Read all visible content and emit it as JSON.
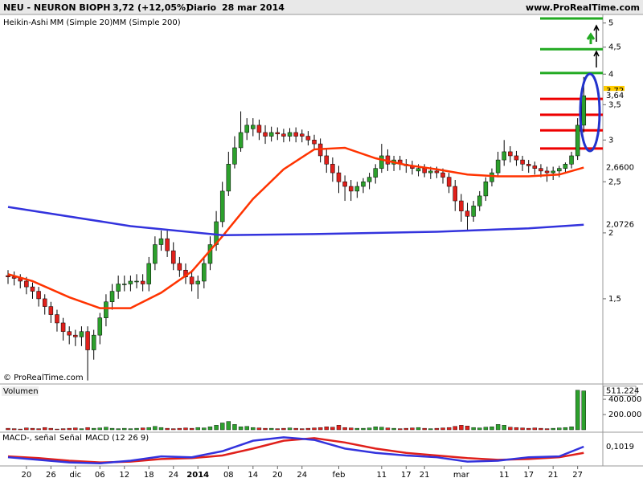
{
  "header": {
    "symbol": "NEU - NEURON BIOPH",
    "quote": "3,72 (+12,05%)",
    "period": "Diario",
    "date": "28 mar 2014",
    "site": "www.ProRealTime.com"
  },
  "copyright": "© ProRealTime.com",
  "chart_data": [
    {
      "type": "candlestick",
      "log_scale": true,
      "ylim": [
        1.034,
        5.19
      ],
      "yticks": [
        5,
        {
          "value": 4.5,
          "label": "4,5"
        },
        4,
        {
          "value": 3.5,
          "label": "3,5"
        },
        3,
        {
          "value": 2.5,
          "label": "2,5"
        },
        2,
        {
          "value": 1.5,
          "label": "1,5"
        }
      ],
      "categories": [
        null,
        null,
        null,
        "20",
        null,
        null,
        null,
        "26",
        null,
        null,
        null,
        "dic",
        null,
        null,
        null,
        "06",
        null,
        null,
        null,
        "12",
        null,
        null,
        null,
        "18",
        null,
        null,
        null,
        "24",
        null,
        null,
        null,
        "2014",
        null,
        null,
        null,
        null,
        "08",
        null,
        null,
        null,
        "14",
        null,
        null,
        null,
        "20",
        null,
        null,
        null,
        "24",
        null,
        null,
        null,
        null,
        null,
        "feb",
        null,
        null,
        null,
        null,
        null,
        null,
        "11",
        null,
        null,
        null,
        "17",
        null,
        null,
        "21",
        null,
        null,
        null,
        null,
        null,
        "mar",
        null,
        null,
        null,
        null,
        null,
        null,
        "11",
        null,
        null,
        null,
        "17",
        null,
        null,
        null,
        "21",
        null,
        null,
        null,
        "27",
        null
      ],
      "candles": {
        "name": "Heikin-Ashi",
        "up_color": "#2ca02c",
        "down_color": "#e0201b",
        "open": [
          1.66,
          1.65,
          1.64,
          1.62,
          1.58,
          1.55,
          1.5,
          1.45,
          1.4,
          1.35,
          1.3,
          1.28,
          1.27,
          1.3,
          1.2,
          1.28,
          1.38,
          1.48,
          1.55,
          1.6,
          1.6,
          1.62,
          1.62,
          1.6,
          1.75,
          1.9,
          1.95,
          1.85,
          1.75,
          1.7,
          1.65,
          1.6,
          1.62,
          1.75,
          1.9,
          2.1,
          2.4,
          2.7,
          2.9,
          3.1,
          3.15,
          3.2,
          3.1,
          3.05,
          3.1,
          3.08,
          3.05,
          3.1,
          3.08,
          3.05,
          3.0,
          2.95,
          2.8,
          2.7,
          2.6,
          2.5,
          2.45,
          2.4,
          2.45,
          2.5,
          2.55,
          2.65,
          2.8,
          2.7,
          2.75,
          2.7,
          2.68,
          2.62,
          2.65,
          2.6,
          2.62,
          2.6,
          2.55,
          2.45,
          2.3,
          2.2,
          2.15,
          2.25,
          2.35,
          2.5,
          2.6,
          2.75,
          2.85,
          2.8,
          2.75,
          2.7,
          2.68,
          2.65,
          2.62,
          2.6,
          2.62,
          2.65,
          2.7,
          2.8,
          3.2
        ],
        "high": [
          1.7,
          1.69,
          1.67,
          1.65,
          1.61,
          1.58,
          1.53,
          1.48,
          1.43,
          1.38,
          1.33,
          1.31,
          1.33,
          1.33,
          1.31,
          1.41,
          1.53,
          1.6,
          1.66,
          1.66,
          1.66,
          1.67,
          1.67,
          1.8,
          1.97,
          2.02,
          2.02,
          1.92,
          1.8,
          1.75,
          1.7,
          1.66,
          1.8,
          1.97,
          2.2,
          2.5,
          2.85,
          3.05,
          3.4,
          3.3,
          3.3,
          3.28,
          3.2,
          3.18,
          3.17,
          3.15,
          3.16,
          3.17,
          3.14,
          3.12,
          3.07,
          3.02,
          2.88,
          2.78,
          2.68,
          2.57,
          2.52,
          2.5,
          2.54,
          2.6,
          2.7,
          2.95,
          2.88,
          2.8,
          2.8,
          2.76,
          2.74,
          2.7,
          2.7,
          2.67,
          2.67,
          2.65,
          2.6,
          2.52,
          2.37,
          2.28,
          2.3,
          2.4,
          2.55,
          2.65,
          2.85,
          3.0,
          2.92,
          2.86,
          2.8,
          2.75,
          2.73,
          2.7,
          2.67,
          2.67,
          2.68,
          2.72,
          2.85,
          3.3,
          3.95
        ],
        "low": [
          1.6,
          1.59,
          1.57,
          1.53,
          1.5,
          1.45,
          1.4,
          1.35,
          1.3,
          1.25,
          1.23,
          1.22,
          1.22,
          1.05,
          1.15,
          1.23,
          1.33,
          1.43,
          1.5,
          1.55,
          1.55,
          1.57,
          1.55,
          1.55,
          1.7,
          1.85,
          1.8,
          1.7,
          1.65,
          1.6,
          1.55,
          1.5,
          1.57,
          1.7,
          1.85,
          2.05,
          2.35,
          2.65,
          2.85,
          3.0,
          3.05,
          3.0,
          2.95,
          2.98,
          3.0,
          2.97,
          2.98,
          2.97,
          2.97,
          2.93,
          2.88,
          2.72,
          2.6,
          2.5,
          2.38,
          2.3,
          2.3,
          2.33,
          2.38,
          2.42,
          2.48,
          2.6,
          2.62,
          2.62,
          2.63,
          2.6,
          2.58,
          2.56,
          2.55,
          2.53,
          2.54,
          2.48,
          2.38,
          2.2,
          2.1,
          2.02,
          2.1,
          2.2,
          2.3,
          2.45,
          2.55,
          2.68,
          2.72,
          2.68,
          2.62,
          2.6,
          2.58,
          2.55,
          2.5,
          2.52,
          2.55,
          2.6,
          2.65,
          2.75,
          3.1
        ],
        "close": [
          1.65,
          1.64,
          1.62,
          1.58,
          1.55,
          1.5,
          1.45,
          1.4,
          1.35,
          1.3,
          1.28,
          1.27,
          1.3,
          1.2,
          1.28,
          1.38,
          1.48,
          1.55,
          1.6,
          1.6,
          1.62,
          1.62,
          1.6,
          1.75,
          1.9,
          1.95,
          1.85,
          1.75,
          1.7,
          1.65,
          1.6,
          1.62,
          1.75,
          1.9,
          2.1,
          2.4,
          2.7,
          2.9,
          3.1,
          3.2,
          3.2,
          3.1,
          3.05,
          3.1,
          3.08,
          3.05,
          3.1,
          3.05,
          3.05,
          3.0,
          2.95,
          2.8,
          2.7,
          2.6,
          2.5,
          2.45,
          2.4,
          2.45,
          2.5,
          2.55,
          2.65,
          2.8,
          2.7,
          2.75,
          2.7,
          2.68,
          2.65,
          2.65,
          2.6,
          2.62,
          2.6,
          2.55,
          2.45,
          2.3,
          2.2,
          2.15,
          2.25,
          2.35,
          2.5,
          2.6,
          2.75,
          2.85,
          2.8,
          2.75,
          2.7,
          2.68,
          2.65,
          2.62,
          2.6,
          2.62,
          2.65,
          2.7,
          2.8,
          3.2,
          3.64
        ]
      },
      "series": [
        {
          "name": "MM (Simple 20)",
          "color": "#ff3300",
          "x": [
            0,
            4,
            10,
            15,
            20,
            25,
            30,
            35,
            40,
            45,
            50,
            55,
            60,
            65,
            70,
            75,
            80,
            85,
            90,
            94
          ],
          "values": [
            1.67,
            1.62,
            1.51,
            1.44,
            1.44,
            1.54,
            1.69,
            1.97,
            2.32,
            2.64,
            2.88,
            2.9,
            2.77,
            2.69,
            2.64,
            2.58,
            2.56,
            2.56,
            2.58,
            2.66
          ]
        },
        {
          "name": "MM (Simple 200)",
          "color": "#3333dd",
          "x": [
            0,
            20,
            35,
            50,
            70,
            85,
            94
          ],
          "values": [
            2.24,
            2.06,
            1.98,
            1.99,
            2.01,
            2.04,
            2.0726
          ]
        }
      ],
      "price_labels": [
        {
          "value": 3.72,
          "label": "3,72",
          "color": "#ffcc00"
        },
        {
          "value": 3.64,
          "label": "3,64",
          "color": "#ffffff"
        },
        {
          "value": 2.66,
          "label": "2,6600",
          "color": "#e0201b"
        },
        {
          "value": 2.0726,
          "label": "2,0726",
          "color": "#3333dd"
        }
      ],
      "levels": [
        {
          "value": 5.1,
          "color": "#22aa22"
        },
        {
          "value": 4.46,
          "color": "#22aa22"
        },
        {
          "value": 4.02,
          "color": "#22aa22"
        },
        {
          "value": 3.59,
          "color": "#ee0000"
        },
        {
          "value": 3.35,
          "color": "#ee0000"
        },
        {
          "value": 3.13,
          "color": "#ee0000"
        },
        {
          "value": 2.89,
          "color": "#ee0000"
        }
      ]
    },
    {
      "type": "bar",
      "title": "Volumen",
      "ylim": [
        0,
        580000
      ],
      "yticks": [
        {
          "value": 400000,
          "label": "400.000"
        },
        {
          "value": 200000,
          "label": "200.000"
        }
      ],
      "values": [
        20000,
        15000,
        10000,
        25000,
        20000,
        15000,
        30000,
        20000,
        10000,
        15000,
        20000,
        25000,
        15000,
        30000,
        20000,
        25000,
        35000,
        20000,
        15000,
        20000,
        15000,
        20000,
        25000,
        30000,
        45000,
        30000,
        20000,
        15000,
        20000,
        25000,
        20000,
        30000,
        25000,
        40000,
        60000,
        90000,
        110000,
        70000,
        40000,
        45000,
        30000,
        25000,
        20000,
        20000,
        15000,
        20000,
        25000,
        20000,
        15000,
        20000,
        25000,
        30000,
        40000,
        35000,
        60000,
        30000,
        25000,
        20000,
        20000,
        25000,
        40000,
        35000,
        25000,
        20000,
        15000,
        20000,
        25000,
        30000,
        20000,
        15000,
        20000,
        25000,
        30000,
        45000,
        60000,
        50000,
        30000,
        25000,
        35000,
        40000,
        70000,
        60000,
        35000,
        30000,
        25000,
        20000,
        25000,
        20000,
        15000,
        20000,
        25000,
        30000,
        40000,
        520000,
        511224
      ],
      "last_label": {
        "value": 511224,
        "label": "511.224"
      }
    },
    {
      "type": "line",
      "histogram_name": "MACD-, señal",
      "ylim": [
        -0.12,
        0.25
      ],
      "series": [
        {
          "name": "Señal",
          "color": "#e0201b",
          "x": [
            0,
            5,
            10,
            15,
            20,
            25,
            30,
            35,
            40,
            45,
            50,
            55,
            60,
            65,
            70,
            75,
            80,
            85,
            90,
            94
          ],
          "values": [
            -0.01,
            -0.03,
            -0.06,
            -0.08,
            -0.07,
            -0.04,
            -0.03,
            0.0,
            0.08,
            0.17,
            0.2,
            0.15,
            0.08,
            0.03,
            0.0,
            -0.03,
            -0.05,
            -0.04,
            -0.02,
            0.03
          ]
        },
        {
          "name": "MACD (12 26 9)",
          "color": "#3333dd",
          "x": [
            0,
            5,
            10,
            15,
            20,
            25,
            30,
            35,
            40,
            45,
            50,
            55,
            60,
            65,
            70,
            75,
            80,
            85,
            90,
            94
          ],
          "values": [
            -0.02,
            -0.05,
            -0.08,
            -0.09,
            -0.06,
            -0.01,
            -0.02,
            0.05,
            0.17,
            0.21,
            0.18,
            0.08,
            0.03,
            0.0,
            -0.02,
            -0.07,
            -0.06,
            -0.02,
            -0.01,
            0.1019
          ]
        }
      ],
      "last_label": {
        "value": 0.1019,
        "label": "0,1019"
      }
    }
  ]
}
